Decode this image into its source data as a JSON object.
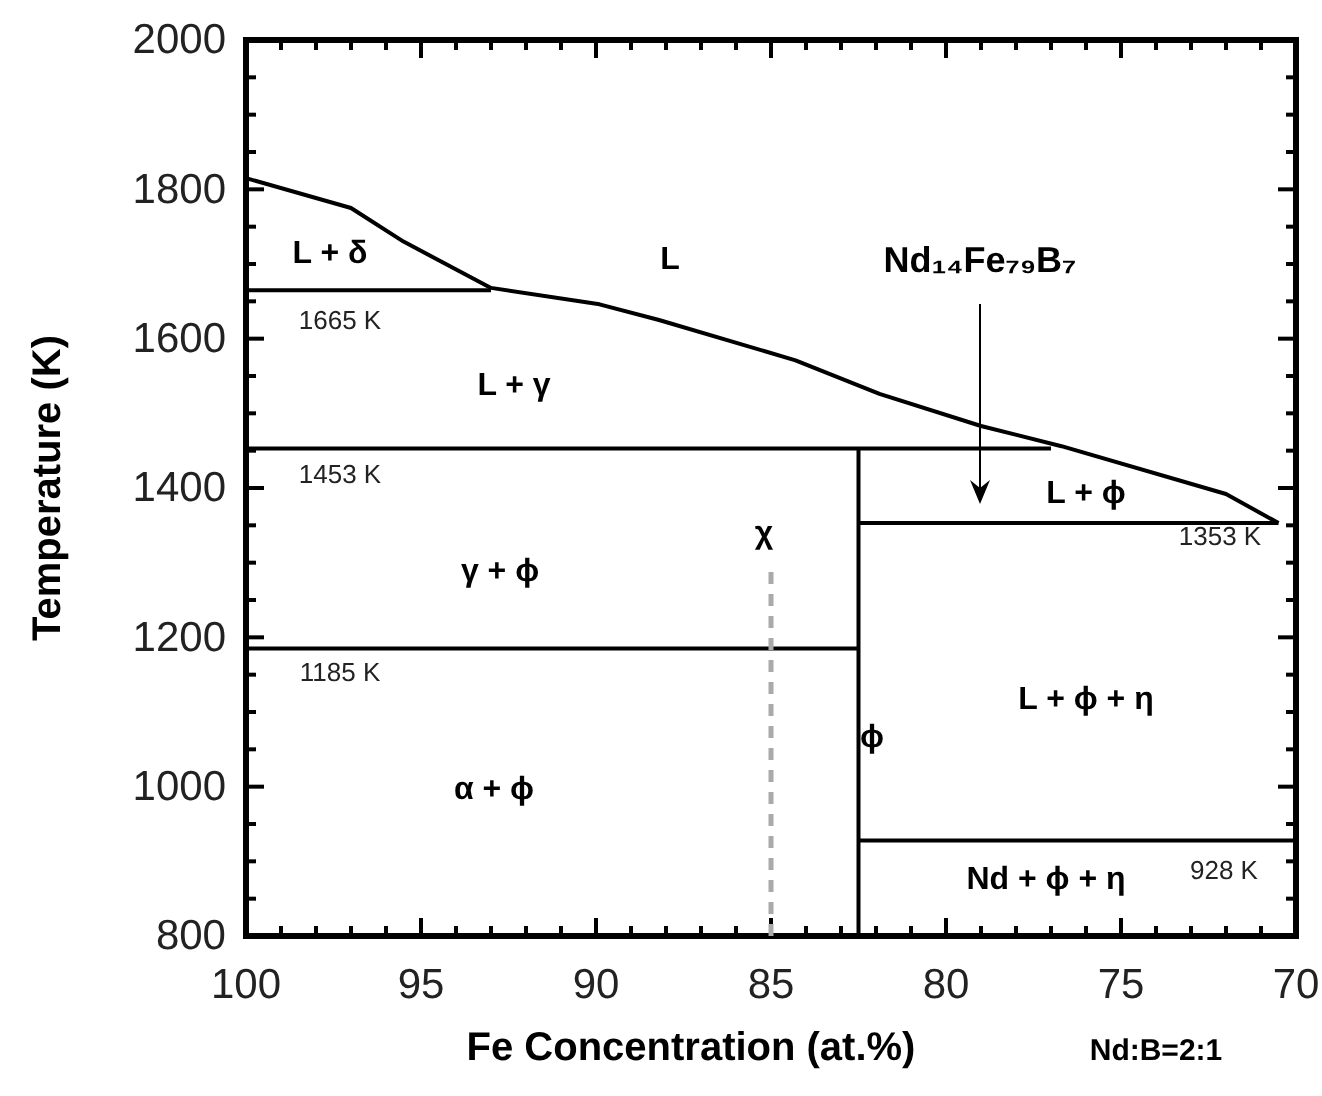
{
  "chart_data": {
    "type": "line",
    "xlabel": "Fe Concentration  (at.%)",
    "ylabel": "Temperature  (K)",
    "xlim": [
      100,
      70
    ],
    "ylim": [
      800,
      2000
    ],
    "xticks": [
      100,
      {
        "value": 99,
        "label": null
      },
      {
        "value": 98,
        "label": null
      },
      {
        "value": 97,
        "label": null
      },
      {
        "value": 96,
        "label": null
      },
      95,
      {
        "value": 94,
        "label": null
      },
      {
        "value": 93,
        "label": null
      },
      {
        "value": 92,
        "label": null
      },
      {
        "value": 91,
        "label": null
      },
      90,
      {
        "value": 89,
        "label": null
      },
      {
        "value": 88,
        "label": null
      },
      {
        "value": 87,
        "label": null
      },
      {
        "value": 86,
        "label": null
      },
      85,
      {
        "value": 84,
        "label": null
      },
      {
        "value": 83,
        "label": null
      },
      {
        "value": 82,
        "label": null
      },
      {
        "value": 81,
        "label": null
      },
      80,
      {
        "value": 79,
        "label": null
      },
      {
        "value": 78,
        "label": null
      },
      {
        "value": 77,
        "label": null
      },
      {
        "value": 76,
        "label": null
      },
      75,
      {
        "value": 74,
        "label": null
      },
      {
        "value": 73,
        "label": null
      },
      {
        "value": 72,
        "label": null
      },
      {
        "value": 71,
        "label": null
      },
      70
    ],
    "yticks": [
      800,
      {
        "value": 850,
        "label": null
      },
      {
        "value": 900,
        "label": null
      },
      {
        "value": 950,
        "label": null
      },
      1000,
      {
        "value": 1050,
        "label": null
      },
      {
        "value": 1100,
        "label": null
      },
      {
        "value": 1150,
        "label": null
      },
      1200,
      {
        "value": 1250,
        "label": null
      },
      {
        "value": 1300,
        "label": null
      },
      {
        "value": 1350,
        "label": null
      },
      1400,
      {
        "value": 1450,
        "label": null
      },
      {
        "value": 1500,
        "label": null
      },
      {
        "value": 1550,
        "label": null
      },
      1600,
      {
        "value": 1650,
        "label": null
      },
      {
        "value": 1700,
        "label": null
      },
      {
        "value": 1750,
        "label": null
      },
      1800,
      {
        "value": 1850,
        "label": null
      },
      {
        "value": 1900,
        "label": null
      },
      {
        "value": 1950,
        "label": null
      },
      2000
    ],
    "grid": false,
    "series": [
      {
        "color": "#000000",
        "x": [
          100,
          97,
          95.5,
          93,
          89.9,
          88.2,
          84.3,
          81.9,
          79,
          76.7,
          72,
          70.5
        ],
        "values": [
          1815,
          1775,
          1730,
          1668,
          1646,
          1625,
          1571,
          1526,
          1483,
          1456,
          1392,
          1353
        ]
      },
      {
        "color": "#000000",
        "x": [
          100,
          93
        ],
        "values": [
          1665,
          1665
        ]
      },
      {
        "color": "#000000",
        "x": [
          100,
          77
        ],
        "values": [
          1453,
          1453
        ]
      },
      {
        "color": "#000000",
        "x": [
          100,
          82.5
        ],
        "values": [
          1185,
          1185
        ]
      },
      {
        "color": "#000000",
        "x": [
          82.5,
          70.5
        ],
        "values": [
          1353,
          1353
        ]
      },
      {
        "color": "#000000",
        "x": [
          82.5,
          70
        ],
        "values": [
          928,
          928
        ]
      },
      {
        "color": "#000000",
        "x": [
          82.5,
          82.5
        ],
        "values": [
          800,
          1453
        ]
      },
      {
        "color": "#aaaaaa",
        "line_style": "dashed",
        "x": [
          85,
          85
        ],
        "values": [
          800,
          1290
        ]
      }
    ],
    "annotations": [
      "L",
      "L + δ",
      "1665 K",
      "L + γ",
      "1453 K",
      "γ + ϕ",
      "1185 K",
      "α + ϕ",
      "χ",
      "ϕ",
      "L + ϕ",
      "1353 K",
      "L + ϕ + η",
      "Nd + ϕ + η",
      "928 K",
      "Nd₁₄Fe₇₉B₇",
      "Nd:B=2:1"
    ]
  }
}
